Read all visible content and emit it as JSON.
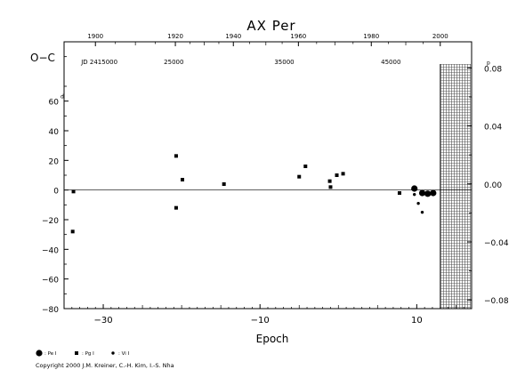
{
  "chart_data": {
    "type": "scatter",
    "title": "AX Per",
    "ylabel": "O−C",
    "xlabel": "Epoch",
    "ylim": [
      -80,
      100
    ],
    "xlim": [
      -35,
      17
    ],
    "y_ticks": [
      60,
      40,
      20,
      0,
      -20,
      -40,
      -60,
      -80
    ],
    "y_tick_labels": [
      "60",
      "40",
      "20",
      "0",
      "−20",
      "−40",
      "−60",
      "−80"
    ],
    "y_unit_mark": "d",
    "x_ticks": [
      -30,
      -10,
      10
    ],
    "x_tick_labels": [
      "−30",
      "−10",
      "10"
    ],
    "right_ticks": [
      0.08,
      0.04,
      0.0,
      -0.04,
      -0.08
    ],
    "right_tick_labels": [
      "0.08",
      "0.04",
      "0.00",
      "−0.04",
      "−0.08"
    ],
    "right_unit_mark": "p",
    "top_years": [
      1900,
      1920,
      1940,
      1960,
      1980,
      2000
    ],
    "top_year_epochs": [
      -31.0,
      -20.8,
      -13.4,
      -5.1,
      4.2,
      13.0
    ],
    "jd_labels": [
      {
        "text": "JD 2415000",
        "epoch": -30.5
      },
      {
        "text": "25000",
        "epoch": -21.0
      },
      {
        "text": "35000",
        "epoch": -6.9
      },
      {
        "text": "45000",
        "epoch": 6.7
      }
    ],
    "future_region_start_epoch": 13.0,
    "series": [
      {
        "marker": "circle",
        "values": [
          [
            9.7,
            1.0
          ],
          [
            10.7,
            -2.0
          ],
          [
            11.4,
            -2.5
          ],
          [
            12.1,
            -2.0
          ]
        ]
      },
      {
        "marker": "square",
        "values": [
          [
            -33.9,
            -28
          ],
          [
            -33.8,
            -1
          ],
          [
            -20.7,
            23
          ],
          [
            -20.7,
            -12
          ],
          [
            -19.9,
            7
          ],
          [
            -14.6,
            4
          ],
          [
            -5.0,
            9
          ],
          [
            -4.2,
            16
          ],
          [
            -1.1,
            6
          ],
          [
            -1.0,
            2
          ],
          [
            -0.2,
            10
          ],
          [
            0.6,
            11
          ],
          [
            7.8,
            -2
          ]
        ]
      },
      {
        "marker": "dot",
        "values": [
          [
            9.7,
            -3
          ],
          [
            10.2,
            -9
          ],
          [
            10.7,
            -15
          ]
        ]
      }
    ],
    "legend": [
      {
        "marker": "circle",
        "label": ": Pe I"
      },
      {
        "marker": "square",
        "label": ": Pg I"
      },
      {
        "marker": "dot",
        "label": ": Vi I"
      }
    ],
    "footer": "Copyright 2000 J.M. Kreiner, C.-H. Kim, I.-S. Nha"
  }
}
